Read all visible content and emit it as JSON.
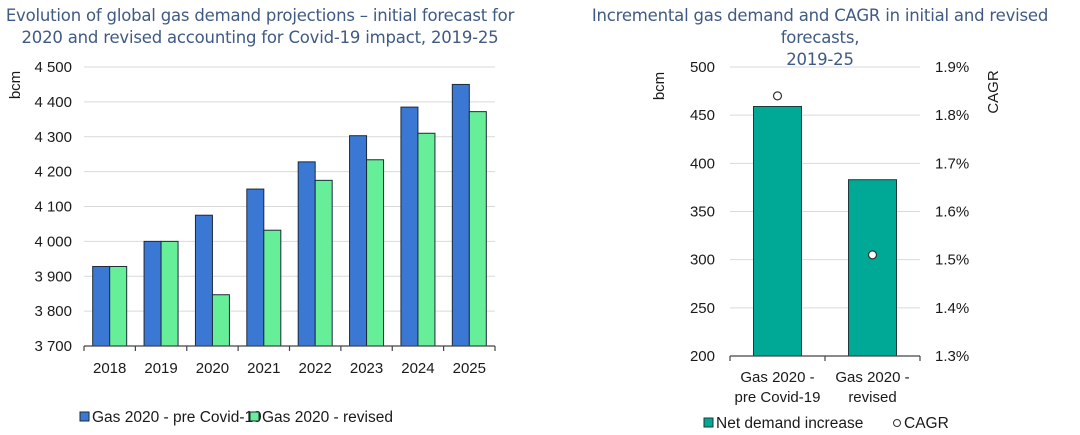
{
  "chart_data": [
    {
      "type": "bar",
      "title": "Evolution of global gas demand projections – initial forecast for 2020 and revised accounting for Covid-19 impact, 2019-25",
      "xlabel": "",
      "ylabel": "bcm",
      "ylim": [
        3700,
        4500
      ],
      "yticks": [
        3700,
        3800,
        3900,
        4000,
        4100,
        4200,
        4300,
        4400,
        4500
      ],
      "ytick_labels": [
        "3 700",
        "3 800",
        "3 900",
        "4 000",
        "4 100",
        "4 200",
        "4 300",
        "4 400",
        "4 500"
      ],
      "grid": true,
      "legend_position": "bottom",
      "categories": [
        "2018",
        "2019",
        "2020",
        "2021",
        "2022",
        "2023",
        "2024",
        "2025"
      ],
      "series": [
        {
          "name": "Gas 2020 - pre Covid-19",
          "color": "#3b78d4",
          "values": [
            3928,
            4000,
            4075,
            4150,
            4228,
            4303,
            4385,
            4450
          ]
        },
        {
          "name": "Gas 2020 - revised",
          "color": "#66ee99",
          "values": [
            3928,
            4000,
            3847,
            4032,
            4175,
            4234,
            4310,
            4372
          ]
        }
      ]
    },
    {
      "type": "bar",
      "title": "Incremental gas demand and CAGR in initial and revised forecasts, 2019-25",
      "xlabel": "",
      "ylabel": "bcm",
      "y2label": "CAGR",
      "ylim": [
        200,
        500
      ],
      "yticks": [
        200,
        250,
        300,
        350,
        400,
        450,
        500
      ],
      "y2lim": [
        1.3,
        1.9
      ],
      "y2ticks": [
        1.3,
        1.4,
        1.5,
        1.6,
        1.7,
        1.8,
        1.9
      ],
      "y2tick_labels": [
        "1.3%",
        "1.4%",
        "1.5%",
        "1.6%",
        "1.7%",
        "1.8%",
        "1.9%"
      ],
      "grid": true,
      "legend_position": "bottom",
      "categories": [
        [
          "Gas 2020 -",
          "pre Covid-19"
        ],
        [
          "Gas 2020 -",
          "revised"
        ]
      ],
      "series": [
        {
          "name": "Net demand increase",
          "type": "bar",
          "axis": "left",
          "color": "#00a896",
          "values": [
            459,
            383
          ]
        },
        {
          "name": "CAGR",
          "type": "scatter",
          "axis": "right",
          "color": "#ffffff",
          "values": [
            1.84,
            1.51
          ]
        }
      ]
    }
  ]
}
